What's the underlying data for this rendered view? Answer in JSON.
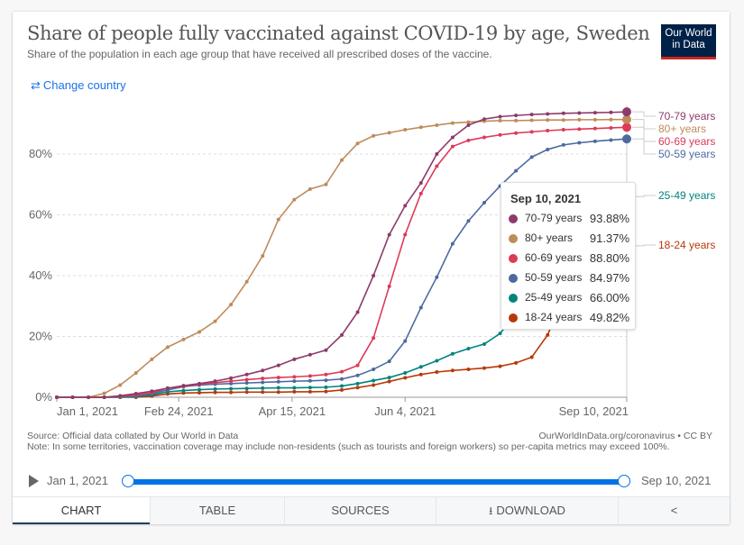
{
  "header": {
    "title": "Share of people fully vaccinated against COVID-19 by age, Sweden",
    "subtitle": "Share of the population in each age group that have received all prescribed doses of the vaccine.",
    "logo_line1": "Our World",
    "logo_line2": "in Data",
    "change_country_icon": "swap-arrows-icon",
    "change_country_label": "Change country"
  },
  "colors": {
    "70-79": "#8c3b6a",
    "80+": "#bf8b5a",
    "60-69": "#dc3a57",
    "50-59": "#4c6aa0",
    "25-49": "#00847e",
    "18-24": "#b9380a",
    "accent": "#0073e6",
    "link": "#1a73e8",
    "logo_bg": "#002147",
    "logo_bar": "#ce261e"
  },
  "chart_data": {
    "type": "line",
    "title": "Share of people fully vaccinated against COVID-19 by age, Sweden",
    "xlabel": "",
    "ylabel": "",
    "ylim": [
      0,
      100
    ],
    "yticks": [
      "0%",
      "20%",
      "40%",
      "60%",
      "80%"
    ],
    "ytick_values": [
      0,
      20,
      40,
      60,
      80
    ],
    "xticks": [
      "Jan 1, 2021",
      "Feb 24, 2021",
      "Apr 15, 2021",
      "Jun 4, 2021",
      "Sep 10, 2021"
    ],
    "xtick_weeks": [
      0,
      7.7,
      14.86,
      22,
      36
    ],
    "x_start": "Jan 1, 2021",
    "x_end": "Sep 10, 2021",
    "x_unit": "weeks since Jan 1, 2021",
    "grid": "horizontal-dashed",
    "legend": "right-inline-labels",
    "series": [
      {
        "name": "70-79 years",
        "key": "70-79",
        "values": [
          0,
          0,
          0,
          0,
          0.5,
          1.2,
          2,
          3,
          3.8,
          4.5,
          5.3,
          6.3,
          7.5,
          8.8,
          10.5,
          12.5,
          14,
          15.5,
          20.5,
          28,
          40,
          53.5,
          63,
          70.5,
          80,
          85.5,
          89.5,
          91.5,
          92.3,
          92.7,
          93,
          93.2,
          93.4,
          93.5,
          93.6,
          93.7,
          93.88
        ]
      },
      {
        "name": "80+ years",
        "key": "80+",
        "values": [
          0,
          0,
          0,
          1.3,
          4,
          8,
          12.5,
          16.5,
          19,
          21.5,
          25,
          30.5,
          38,
          46.5,
          58.5,
          65,
          68.5,
          70,
          78,
          83.5,
          86,
          87,
          88,
          88.8,
          89.5,
          90.2,
          90.5,
          90.8,
          91,
          91,
          91.1,
          91.2,
          91.2,
          91.3,
          91.3,
          91.35,
          91.37
        ]
      },
      {
        "name": "60-69 years",
        "key": "60-69",
        "values": [
          0,
          0,
          0,
          0,
          0.3,
          0.8,
          1.5,
          3,
          3.6,
          4.3,
          4.8,
          5.3,
          5.8,
          6.2,
          6.5,
          6.7,
          7,
          7.5,
          8.4,
          10.5,
          19.5,
          36.5,
          53.5,
          67,
          76,
          82.5,
          84.5,
          85.5,
          86.3,
          86.9,
          87.3,
          87.7,
          88,
          88.2,
          88.4,
          88.6,
          88.8
        ]
      },
      {
        "name": "50-59 years",
        "key": "50-59",
        "values": [
          0,
          0,
          0,
          0,
          0.2,
          0.5,
          1.2,
          2.4,
          3.5,
          4,
          4.3,
          4.5,
          4.7,
          4.9,
          5.1,
          5.3,
          5.4,
          5.6,
          6,
          7.2,
          9.2,
          11.8,
          18.5,
          29.5,
          39.5,
          50.5,
          58,
          64,
          69.5,
          74.5,
          79,
          81.5,
          83,
          83.7,
          84.2,
          84.6,
          84.97
        ]
      },
      {
        "name": "25-49 years",
        "key": "25-49",
        "values": [
          0,
          0,
          0,
          0,
          0,
          0.2,
          0.8,
          1.8,
          2.2,
          2.5,
          2.7,
          2.8,
          2.9,
          3,
          3.1,
          3.1,
          3.2,
          3.3,
          3.7,
          4.5,
          5.5,
          6.5,
          8,
          10,
          12,
          14.3,
          16,
          17.5,
          21,
          27.5,
          34.5,
          41,
          47,
          53,
          58.5,
          63,
          66
        ]
      },
      {
        "name": "18-24 years",
        "key": "18-24",
        "values": [
          0,
          0,
          0,
          0,
          0,
          0,
          0.4,
          1.1,
          1.4,
          1.5,
          1.6,
          1.6,
          1.7,
          1.7,
          1.7,
          1.8,
          1.8,
          1.9,
          2.4,
          3.2,
          4,
          5.2,
          6.4,
          7.5,
          8.3,
          8.8,
          9.2,
          9.6,
          10.2,
          11.3,
          13.2,
          20.5,
          33,
          47,
          49,
          49.5,
          49.82
        ]
      }
    ],
    "tooltip": {
      "date": "Sep 10, 2021",
      "rows": [
        {
          "name": "70-79 years",
          "key": "70-79",
          "value": "93.88%"
        },
        {
          "name": "80+ years",
          "key": "80+",
          "value": "91.37%"
        },
        {
          "name": "60-69 years",
          "key": "60-69",
          "value": "88.80%"
        },
        {
          "name": "50-59 years",
          "key": "50-59",
          "value": "84.97%"
        },
        {
          "name": "25-49 years",
          "key": "25-49",
          "value": "66.00%"
        },
        {
          "name": "18-24 years",
          "key": "18-24",
          "value": "49.82%"
        }
      ]
    },
    "end_labels": [
      "70-79 years",
      "80+ years",
      "60-69 years",
      "50-59 years",
      "25-49 years",
      "18-24 years"
    ]
  },
  "footer": {
    "source": "Source: Official data collated by Our World in Data",
    "note": "Note: In some territories, vaccination coverage may include non-residents (such as tourists and foreign workers) so per-capita metrics may exceed 100%.",
    "url": "OurWorldInData.org/coronavirus • CC BY"
  },
  "timeline": {
    "start_label": "Jan 1, 2021",
    "end_label": "Sep 10, 2021",
    "play_icon": "play-icon",
    "selected_range": [
      0,
      1
    ]
  },
  "tabs": [
    {
      "label": "CHART",
      "active": true
    },
    {
      "label": "TABLE",
      "active": false
    },
    {
      "label": "SOURCES",
      "active": false
    },
    {
      "label": "DOWNLOAD",
      "active": false,
      "icon": "download-icon"
    },
    {
      "label": "",
      "active": false,
      "icon": "share-icon"
    }
  ]
}
